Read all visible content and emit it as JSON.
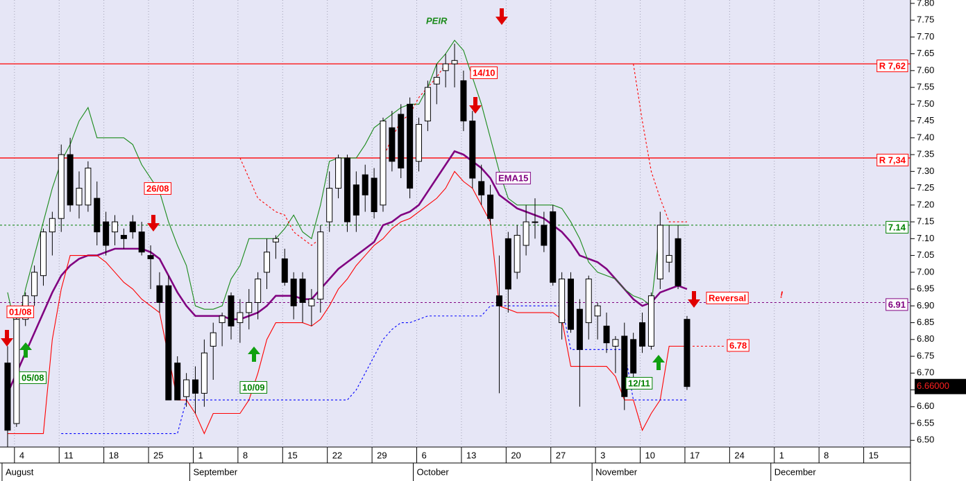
{
  "chart_data": {
    "type": "candlestick",
    "title": "PEIR",
    "xlim": [
      -0.85,
      101
    ],
    "xticks": [
      {
        "value": 1,
        "label": "4"
      },
      {
        "value": 6,
        "label": "11"
      },
      {
        "value": 11,
        "label": "18"
      },
      {
        "value": 16,
        "label": "25"
      },
      {
        "value": 21,
        "label": "1"
      },
      {
        "value": 26,
        "label": "8"
      },
      {
        "value": 31,
        "label": "15"
      },
      {
        "value": 36,
        "label": "22"
      },
      {
        "value": 41,
        "label": "29"
      },
      {
        "value": 46,
        "label": "6"
      },
      {
        "value": 51,
        "label": "13"
      },
      {
        "value": 56,
        "label": "20"
      },
      {
        "value": 61,
        "label": "27"
      },
      {
        "value": 66,
        "label": "3"
      },
      {
        "value": 71,
        "label": "10"
      },
      {
        "value": 76,
        "label": "17"
      },
      {
        "value": 81,
        "label": "24"
      },
      {
        "value": 86,
        "label": "1"
      },
      {
        "value": 91,
        "label": "8"
      },
      {
        "value": 96,
        "label": "15"
      }
    ],
    "month_ticks": [
      {
        "value": 0,
        "label": "August"
      },
      {
        "value": 21,
        "label": "September"
      },
      {
        "value": 46,
        "label": "October"
      },
      {
        "value": 66,
        "label": "November"
      },
      {
        "value": 86,
        "label": "December"
      }
    ],
    "ylim": [
      6.48,
      7.81
    ],
    "yticks": [
      {
        "value": 6.5,
        "label": "6.50"
      },
      {
        "value": 6.55,
        "label": "6.55"
      },
      {
        "value": 6.6,
        "label": "6.60"
      },
      {
        "value": 6.65,
        "label": "6.65"
      },
      {
        "value": 6.7,
        "label": "6.70"
      },
      {
        "value": 6.75,
        "label": "6.75"
      },
      {
        "value": 6.8,
        "label": "6.80"
      },
      {
        "value": 6.85,
        "label": "6.85"
      },
      {
        "value": 6.9,
        "label": "6.90"
      },
      {
        "value": 6.95,
        "label": "6.95"
      },
      {
        "value": 7,
        "label": "7.00"
      },
      {
        "value": 7.05,
        "label": "7.05"
      },
      {
        "value": 7.1,
        "label": "7.10"
      },
      {
        "value": 7.15,
        "label": "7.15"
      },
      {
        "value": 7.2,
        "label": "7.20"
      },
      {
        "value": 7.25,
        "label": "7.25"
      },
      {
        "value": 7.3,
        "label": "7.30"
      },
      {
        "value": 7.35,
        "label": "7.35"
      },
      {
        "value": 7.4,
        "label": "7.40"
      },
      {
        "value": 7.45,
        "label": "7.45"
      },
      {
        "value": 7.5,
        "label": "7.50"
      },
      {
        "value": 7.55,
        "label": "7.55"
      },
      {
        "value": 7.6,
        "label": "7.60"
      },
      {
        "value": 7.65,
        "label": "7.65"
      },
      {
        "value": 7.7,
        "label": "7.70"
      },
      {
        "value": 7.75,
        "label": "7.75"
      },
      {
        "value": 7.8,
        "label": "7.80"
      }
    ],
    "grid": true,
    "open": [
      6.73,
      6.55,
      6.86,
      6.93,
      6.99,
      7.12,
      7.16,
      7.35,
      7.2,
      7.2,
      7.22,
      7.15,
      7.12,
      7.11,
      7.15,
      7.12,
      7.05,
      6.96,
      6.96,
      6.73,
      6.63,
      6.68,
      6.64,
      6.78,
      6.85,
      6.93,
      6.85,
      6.88,
      6.91,
      7.0,
      7.09,
      7.04,
      6.98,
      6.98,
      6.9,
      6.92,
      7.15,
      7.25,
      7.34,
      7.26,
      7.29,
      7.28,
      7.2,
      7.43,
      7.47,
      7.5,
      7.33,
      7.45,
      7.56,
      7.6,
      7.62,
      7.57,
      7.45,
      7.27,
      7.23,
      6.93,
      7.1,
      7.0,
      7.08,
      7.15,
      7.14,
      7.18,
      6.85,
      6.98,
      6.89,
      6.85,
      6.87,
      6.84,
      6.78,
      6.81,
      6.8,
      6.85,
      6.78,
      6.98,
      7.03,
      7.1,
      6.86
    ],
    "high": [
      6.78,
      6.88,
      6.94,
      7.02,
      7.13,
      7.18,
      7.38,
      7.4,
      7.3,
      7.33,
      7.27,
      7.18,
      7.17,
      7.13,
      7.17,
      7.15,
      7.08,
      7.0,
      6.99,
      6.75,
      6.7,
      6.72,
      6.8,
      6.85,
      6.88,
      6.94,
      6.92,
      6.95,
      7.0,
      7.1,
      7.11,
      7.07,
      7.0,
      7.0,
      6.95,
      7.14,
      7.3,
      7.35,
      7.35,
      7.3,
      7.32,
      7.31,
      7.46,
      7.48,
      7.5,
      7.52,
      7.46,
      7.57,
      7.62,
      7.65,
      7.68,
      7.6,
      7.48,
      7.32,
      7.26,
      7.05,
      7.12,
      7.14,
      7.2,
      7.22,
      7.18,
      7.2,
      7.0,
      7.0,
      6.92,
      6.99,
      6.91,
      6.88,
      6.81,
      6.85,
      6.82,
      6.88,
      6.94,
      7.18,
      7.14,
      7.14,
      6.87
    ],
    "low": [
      6.48,
      6.54,
      6.84,
      6.9,
      6.96,
      7.05,
      7.12,
      7.18,
      7.16,
      7.18,
      7.08,
      7.05,
      7.08,
      7.07,
      7.1,
      7.05,
      6.95,
      6.88,
      6.62,
      6.62,
      6.6,
      6.58,
      6.6,
      6.68,
      6.78,
      6.8,
      6.79,
      6.83,
      6.86,
      6.95,
      7.04,
      6.96,
      6.86,
      6.85,
      6.84,
      6.88,
      7.12,
      7.22,
      7.12,
      7.12,
      7.18,
      7.16,
      7.18,
      7.3,
      7.28,
      7.22,
      7.3,
      7.42,
      7.5,
      7.55,
      7.55,
      7.42,
      7.25,
      7.2,
      7.14,
      6.64,
      6.88,
      6.98,
      7.05,
      7.1,
      7.06,
      6.96,
      6.8,
      6.82,
      6.6,
      6.8,
      6.8,
      6.76,
      6.7,
      6.59,
      6.68,
      6.76,
      6.77,
      6.95,
      7.0,
      6.95,
      6.65
    ],
    "close": [
      6.53,
      6.86,
      6.93,
      7.0,
      7.12,
      7.16,
      7.35,
      7.2,
      7.25,
      7.31,
      7.12,
      7.08,
      7.15,
      7.1,
      7.12,
      7.06,
      7.04,
      6.91,
      6.62,
      6.62,
      6.68,
      6.64,
      6.76,
      6.82,
      6.87,
      6.84,
      6.88,
      6.91,
      6.98,
      7.06,
      7.1,
      6.97,
      6.9,
      6.91,
      6.92,
      7.12,
      7.25,
      7.34,
      7.15,
      7.17,
      7.23,
      7.18,
      7.45,
      7.33,
      7.31,
      7.25,
      7.44,
      7.55,
      7.58,
      7.62,
      7.63,
      7.45,
      7.28,
      7.23,
      7.16,
      6.9,
      6.95,
      7.11,
      7.15,
      7.15,
      7.08,
      6.97,
      6.98,
      6.83,
      6.77,
      6.98,
      6.9,
      6.79,
      6.8,
      6.63,
      6.7,
      6.78,
      6.93,
      7.14,
      7.05,
      6.96,
      6.66
    ],
    "last_price": {
      "value": 6.66,
      "label": "6.66000"
    },
    "series": [
      {
        "name": "EMA15",
        "color": "#800080",
        "style": "thick",
        "values": [
          6.64,
          6.7,
          6.76,
          6.82,
          6.88,
          6.94,
          6.99,
          7.02,
          7.04,
          7.05,
          7.05,
          7.06,
          7.07,
          7.07,
          7.07,
          7.07,
          7.06,
          7.04,
          6.99,
          6.94,
          6.9,
          6.87,
          6.87,
          6.87,
          6.87,
          6.86,
          6.86,
          6.87,
          6.88,
          6.9,
          6.93,
          6.93,
          6.93,
          6.92,
          6.92,
          6.95,
          6.98,
          7.01,
          7.03,
          7.05,
          7.07,
          7.09,
          7.14,
          7.15,
          7.17,
          7.18,
          7.2,
          7.24,
          7.28,
          7.32,
          7.36,
          7.35,
          7.33,
          7.31,
          7.28,
          7.23,
          7.21,
          7.19,
          7.18,
          7.17,
          7.16,
          7.14,
          7.12,
          7.09,
          7.05,
          7.04,
          7.03,
          7.01,
          6.98,
          6.95,
          6.92,
          6.9,
          6.91,
          6.94,
          6.95,
          6.96,
          6.95
        ]
      },
      {
        "color": "#1a8a1a",
        "style": "solid",
        "values": [
          6.94,
          6.82,
          6.95,
          7.05,
          7.15,
          7.25,
          7.33,
          7.38,
          7.45,
          7.49,
          7.4,
          7.4,
          7.4,
          7.4,
          7.38,
          7.32,
          7.28,
          7.24,
          7.15,
          7.08,
          7.02,
          6.9,
          6.89,
          6.89,
          6.9,
          6.98,
          7.02,
          7.1,
          7.1,
          7.1,
          7.1,
          7.13,
          7.17,
          7.12,
          7.1,
          7.2,
          7.33,
          7.34,
          7.34,
          7.34,
          7.38,
          7.43,
          7.45,
          7.47,
          7.49,
          7.5,
          7.5,
          7.55,
          7.62,
          7.65,
          7.69,
          7.66,
          7.58,
          7.5,
          7.4,
          7.3,
          7.22,
          7.2,
          7.2,
          7.2,
          7.2,
          7.2,
          7.19,
          7.15,
          7.1,
          7.03,
          7.0,
          6.99,
          6.98,
          6.95,
          6.93,
          6.92,
          6.9,
          7.14,
          7.14,
          7.14,
          7.14
        ]
      },
      {
        "color": "#ff0000",
        "style": "solid",
        "values": [
          6.52,
          6.52,
          6.52,
          6.52,
          6.52,
          6.8,
          6.95,
          7.05,
          7.05,
          7.05,
          7.05,
          7.03,
          7.0,
          6.97,
          6.95,
          6.92,
          6.9,
          6.88,
          6.75,
          6.62,
          6.62,
          6.58,
          6.52,
          6.58,
          6.58,
          6.58,
          6.58,
          6.62,
          6.7,
          6.8,
          6.85,
          6.85,
          6.85,
          6.85,
          6.84,
          6.86,
          6.9,
          6.95,
          6.98,
          7.02,
          7.05,
          7.08,
          7.1,
          7.13,
          7.15,
          7.16,
          7.18,
          7.2,
          7.22,
          7.25,
          7.3,
          7.27,
          7.25,
          7.2,
          7.15,
          6.9,
          6.89,
          6.88,
          6.88,
          6.88,
          6.88,
          6.88,
          6.86,
          6.72,
          6.72,
          6.72,
          6.72,
          6.72,
          6.69,
          6.62,
          6.62,
          6.53,
          6.58,
          6.62,
          6.78,
          6.78,
          6.78
        ]
      },
      {
        "color": "#ff0000",
        "style": "dotted",
        "values": [
          null,
          null,
          null,
          null,
          null,
          null,
          null,
          null,
          null,
          null,
          null,
          null,
          null,
          null,
          null,
          null,
          null,
          null,
          null,
          null,
          null,
          null,
          null,
          null,
          null,
          null,
          7.34,
          7.28,
          7.22,
          7.2,
          7.18,
          7.17,
          7.12,
          7.1,
          7.08,
          7.1,
          null,
          null,
          null,
          null,
          null,
          null,
          7.34,
          7.4,
          7.45,
          7.47,
          7.52,
          7.55,
          7.58,
          7.62,
          null,
          null,
          null,
          null,
          null,
          null,
          null,
          null,
          null,
          null,
          null,
          null,
          null,
          null,
          null,
          null,
          null,
          null,
          null,
          null,
          7.62,
          7.45,
          7.3,
          7.22,
          7.15,
          7.15,
          7.15
        ]
      },
      {
        "color": "#0000ff",
        "style": "dotted",
        "values": [
          null,
          null,
          null,
          null,
          null,
          null,
          6.52,
          6.52,
          6.52,
          6.52,
          6.52,
          6.52,
          6.52,
          6.52,
          6.52,
          6.52,
          6.52,
          6.52,
          6.52,
          6.52,
          6.62,
          6.62,
          6.62,
          6.62,
          6.62,
          6.62,
          6.62,
          6.62,
          6.62,
          6.62,
          6.62,
          6.62,
          6.62,
          6.62,
          6.62,
          6.62,
          6.62,
          6.62,
          6.62,
          6.65,
          6.7,
          6.75,
          6.8,
          6.83,
          6.85,
          6.85,
          6.86,
          6.87,
          6.87,
          6.87,
          6.87,
          6.87,
          6.87,
          6.87,
          6.9,
          6.9,
          6.9,
          6.9,
          6.9,
          6.9,
          6.9,
          6.9,
          6.9,
          6.77,
          6.77,
          6.77,
          6.77,
          6.77,
          6.77,
          6.77,
          6.62,
          6.62,
          6.62,
          6.62,
          6.62,
          6.62,
          6.62
        ]
      }
    ],
    "levels": [
      {
        "value": 7.62,
        "label": "R 7,62",
        "color": "#ff0000",
        "style": "solid"
      },
      {
        "value": 7.34,
        "label": "R 7,34",
        "color": "#ff0000",
        "style": "solid"
      },
      {
        "value": 7.14,
        "label": "7.14",
        "color": "#008000",
        "style": "dashed"
      },
      {
        "value": 6.91,
        "label": "6.91",
        "color": "#800080",
        "style": "dashed"
      },
      {
        "value": 6.78,
        "label": "6.78",
        "color": "#ff0000",
        "style": "dashed",
        "extent": "short"
      }
    ],
    "annotations": [
      {
        "text": "01/08",
        "color": "#ff0000",
        "boxed": true
      },
      {
        "text": "05/08",
        "color": "#008000",
        "boxed": true
      },
      {
        "text": "26/08",
        "color": "#ff0000",
        "boxed": true
      },
      {
        "text": "10/09",
        "color": "#008000",
        "boxed": true
      },
      {
        "text": "14/10",
        "color": "#ff0000",
        "boxed": true
      },
      {
        "text": "12/11",
        "color": "#008000",
        "boxed": true
      },
      {
        "text": "Reversal",
        "color": "#ff0000",
        "boxed": true
      },
      {
        "text": "!",
        "color": "#ff0000",
        "boxed": false
      }
    ]
  }
}
